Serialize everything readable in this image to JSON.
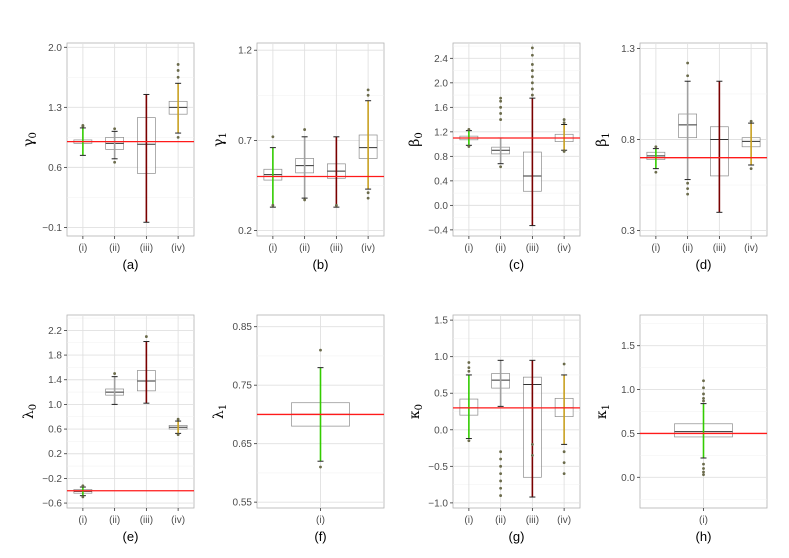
{
  "chart_data": [
    {
      "type": "box",
      "panel": "(a)",
      "ylabel_symbol": "γ",
      "ylabel_sub": "0",
      "ylim": [
        -0.2,
        2.05
      ],
      "yticks": [
        -0.1,
        0.6,
        1.3,
        2.0
      ],
      "ytick_labels": [
        "−0.1",
        "0.6",
        "1.3",
        "2.0"
      ],
      "categories": [
        "(i)",
        "(ii)",
        "(iii)",
        "(iv)"
      ],
      "reference": 0.9,
      "boxes": [
        {
          "color": "#33cc00",
          "q1": 0.88,
          "median": 0.9,
          "q3": 0.92,
          "lo": 0.74,
          "hi": 1.06,
          "outliers": [
            1.08,
            1.09
          ]
        },
        {
          "color": "#a0a0a0",
          "q1": 0.81,
          "median": 0.88,
          "q3": 0.95,
          "lo": 0.7,
          "hi": 1.02,
          "outliers": [
            0.66,
            1.05
          ]
        },
        {
          "color": "#7a0000",
          "q1": 0.53,
          "median": 0.87,
          "q3": 1.18,
          "lo": -0.04,
          "hi": 1.45,
          "outliers": []
        },
        {
          "color": "#c8a020",
          "q1": 1.22,
          "median": 1.3,
          "q3": 1.37,
          "lo": 1.0,
          "hi": 1.58,
          "outliers": [
            0.95,
            1.65,
            1.73,
            1.8
          ]
        }
      ]
    },
    {
      "type": "box",
      "panel": "(b)",
      "ylabel_symbol": "γ",
      "ylabel_sub": "1",
      "ylim": [
        0.17,
        1.24
      ],
      "yticks": [
        0.2,
        0.7,
        1.2
      ],
      "ytick_labels": [
        "0.2",
        "0.7",
        "1.2"
      ],
      "categories": [
        "(i)",
        "(ii)",
        "(iii)",
        "(iv)"
      ],
      "reference": 0.5,
      "boxes": [
        {
          "color": "#33cc00",
          "q1": 0.48,
          "median": 0.51,
          "q3": 0.54,
          "lo": 0.33,
          "hi": 0.66,
          "outliers": [
            0.34,
            0.72
          ]
        },
        {
          "color": "#a0a0a0",
          "q1": 0.52,
          "median": 0.56,
          "q3": 0.6,
          "lo": 0.38,
          "hi": 0.72,
          "outliers": [
            0.37,
            0.76
          ]
        },
        {
          "color": "#7a0000",
          "q1": 0.49,
          "median": 0.53,
          "q3": 0.57,
          "lo": 0.33,
          "hi": 0.72,
          "outliers": [
            0.34
          ]
        },
        {
          "color": "#c8a020",
          "q1": 0.6,
          "median": 0.66,
          "q3": 0.73,
          "lo": 0.43,
          "hi": 0.92,
          "outliers": [
            0.38,
            0.41,
            0.95,
            0.98
          ]
        }
      ]
    },
    {
      "type": "box",
      "panel": "(c)",
      "ylabel_symbol": "β",
      "ylabel_sub": "0",
      "ylim": [
        -0.5,
        2.65
      ],
      "yticks": [
        -0.4,
        0.0,
        0.4,
        0.8,
        1.2,
        1.6,
        2.0,
        2.4
      ],
      "ytick_labels": [
        "−0.4",
        "0.0",
        "0.4",
        "0.8",
        "1.2",
        "1.6",
        "2.0",
        "2.4"
      ],
      "categories": [
        "(i)",
        "(ii)",
        "(iii)",
        "(iv)"
      ],
      "reference": 1.1,
      "boxes": [
        {
          "color": "#33cc00",
          "q1": 1.07,
          "median": 1.1,
          "q3": 1.13,
          "lo": 0.98,
          "hi": 1.22,
          "outliers": [
            0.96,
            1.24
          ]
        },
        {
          "color": "#a0a0a0",
          "q1": 0.84,
          "median": 0.9,
          "q3": 0.95,
          "lo": 0.68,
          "hi": 1.1,
          "outliers": [
            0.63,
            1.4,
            1.5,
            1.6,
            1.7,
            1.75
          ]
        },
        {
          "color": "#7a0000",
          "q1": 0.23,
          "median": 0.48,
          "q3": 0.87,
          "lo": -0.33,
          "hi": 1.75,
          "outliers": [
            1.8,
            1.9,
            2.0,
            2.1,
            2.2,
            2.3,
            2.45,
            2.57
          ]
        },
        {
          "color": "#c8a020",
          "q1": 1.04,
          "median": 1.1,
          "q3": 1.16,
          "lo": 0.9,
          "hi": 1.32,
          "outliers": [
            0.88,
            1.35,
            1.4
          ]
        }
      ]
    },
    {
      "type": "box",
      "panel": "(d)",
      "ylabel_symbol": "β",
      "ylabel_sub": "1",
      "ylim": [
        0.27,
        1.33
      ],
      "yticks": [
        0.3,
        0.8,
        1.3
      ],
      "ytick_labels": [
        "0.3",
        "0.8",
        "1.3"
      ],
      "categories": [
        "(i)",
        "(ii)",
        "(iii)",
        "(iv)"
      ],
      "reference": 0.7,
      "boxes": [
        {
          "color": "#33cc00",
          "q1": 0.69,
          "median": 0.71,
          "q3": 0.73,
          "lo": 0.64,
          "hi": 0.75,
          "outliers": [
            0.62,
            0.76
          ]
        },
        {
          "color": "#a0a0a0",
          "q1": 0.81,
          "median": 0.88,
          "q3": 0.94,
          "lo": 0.58,
          "hi": 1.12,
          "outliers": [
            0.5,
            0.53,
            0.56,
            1.15,
            1.22
          ]
        },
        {
          "color": "#7a0000",
          "q1": 0.6,
          "median": 0.8,
          "q3": 0.87,
          "lo": 0.4,
          "hi": 1.12,
          "outliers": []
        },
        {
          "color": "#c8a020",
          "q1": 0.76,
          "median": 0.79,
          "q3": 0.81,
          "lo": 0.66,
          "hi": 0.89,
          "outliers": [
            0.64,
            0.9
          ]
        }
      ]
    },
    {
      "type": "box",
      "panel": "(e)",
      "ylabel_symbol": "λ",
      "ylabel_sub": "0",
      "ylim": [
        -0.68,
        2.45
      ],
      "yticks": [
        -0.6,
        -0.2,
        0.2,
        0.6,
        1.0,
        1.4,
        1.8,
        2.2
      ],
      "ytick_labels": [
        "−0.6",
        "−0.2",
        "0.2",
        "0.6",
        "1.0",
        "1.4",
        "1.8",
        "2.2"
      ],
      "categories": [
        "(i)",
        "(ii)",
        "(iii)",
        "(iv)"
      ],
      "reference": -0.4,
      "boxes": [
        {
          "color": "#33cc00",
          "q1": -0.44,
          "median": -0.41,
          "q3": -0.38,
          "lo": -0.48,
          "hi": -0.34,
          "outliers": [
            -0.5,
            -0.32
          ]
        },
        {
          "color": "#a0a0a0",
          "q1": 1.15,
          "median": 1.2,
          "q3": 1.25,
          "lo": 1.0,
          "hi": 1.45,
          "outliers": [
            1.5
          ]
        },
        {
          "color": "#7a0000",
          "q1": 1.22,
          "median": 1.38,
          "q3": 1.55,
          "lo": 1.02,
          "hi": 2.02,
          "outliers": [
            2.1
          ]
        },
        {
          "color": "#c8a020",
          "q1": 0.6,
          "median": 0.63,
          "q3": 0.66,
          "lo": 0.53,
          "hi": 0.73,
          "outliers": [
            0.51,
            0.76
          ]
        }
      ]
    },
    {
      "type": "box",
      "panel": "(f)",
      "ylabel_symbol": "λ",
      "ylabel_sub": "1",
      "ylim": [
        0.54,
        0.87
      ],
      "yticks": [
        0.55,
        0.65,
        0.75,
        0.85
      ],
      "ytick_labels": [
        "0.55",
        "0.65",
        "0.75",
        "0.85"
      ],
      "categories": [
        "(i)"
      ],
      "reference": 0.7,
      "boxes": [
        {
          "color": "#33cc00",
          "q1": 0.68,
          "median": 0.7,
          "q3": 0.72,
          "lo": 0.62,
          "hi": 0.78,
          "outliers": [
            0.61,
            0.81
          ]
        }
      ]
    },
    {
      "type": "box",
      "panel": "(g)",
      "ylabel_symbol": "κ",
      "ylabel_sub": "0",
      "ylim": [
        -1.07,
        1.57
      ],
      "yticks": [
        -1.0,
        -0.5,
        0.0,
        0.5,
        1.0,
        1.5
      ],
      "ytick_labels": [
        "−1.0",
        "−0.5",
        "0.0",
        "0.5",
        "1.0",
        "1.5"
      ],
      "categories": [
        "(i)",
        "(ii)",
        "(iii)",
        "(iv)"
      ],
      "reference": 0.3,
      "boxes": [
        {
          "color": "#33cc00",
          "q1": 0.2,
          "median": 0.3,
          "q3": 0.42,
          "lo": -0.12,
          "hi": 0.75,
          "outliers": [
            -0.15,
            0.8,
            0.85,
            0.92
          ]
        },
        {
          "color": "#a0a0a0",
          "q1": 0.57,
          "median": 0.68,
          "q3": 0.77,
          "lo": 0.32,
          "hi": 0.95,
          "outliers": [
            -0.3,
            -0.4,
            -0.5,
            -0.6,
            -0.7,
            -0.8,
            -0.9
          ]
        },
        {
          "color": "#7a0000",
          "q1": -0.65,
          "median": 0.62,
          "q3": 0.72,
          "lo": -0.92,
          "hi": 0.95,
          "outliers": [
            -0.2,
            -0.35
          ]
        },
        {
          "color": "#c8a020",
          "q1": 0.18,
          "median": 0.3,
          "q3": 0.43,
          "lo": -0.2,
          "hi": 0.75,
          "outliers": [
            -0.3,
            -0.45,
            -0.6,
            0.9
          ]
        }
      ]
    },
    {
      "type": "box",
      "panel": "(h)",
      "ylabel_symbol": "κ",
      "ylabel_sub": "1",
      "ylim": [
        -0.35,
        1.85
      ],
      "yticks": [
        0.0,
        0.5,
        1.0,
        1.5
      ],
      "ytick_labels": [
        "0.0",
        "0.5",
        "1.0",
        "1.5"
      ],
      "categories": [
        "(i)"
      ],
      "reference": 0.5,
      "boxes": [
        {
          "color": "#33cc00",
          "q1": 0.46,
          "median": 0.52,
          "q3": 0.61,
          "lo": 0.22,
          "hi": 0.84,
          "outliers": [
            0.03,
            0.06,
            0.1,
            0.15,
            0.87,
            0.9,
            0.95,
            1.02,
            1.1
          ]
        }
      ]
    }
  ]
}
